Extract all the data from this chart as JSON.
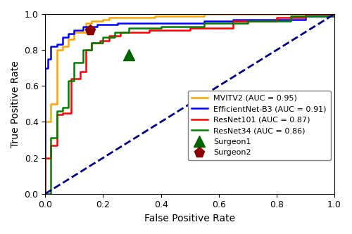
{
  "title": "",
  "xlabel": "False Positive Rate",
  "ylabel": "True Positive Rate",
  "xlim": [
    0.0,
    1.0
  ],
  "ylim": [
    0.0,
    1.0
  ],
  "mvitv2_color": "#FFA500",
  "efficientnet_color": "#0000FF",
  "resnet101_color": "#FF0000",
  "resnet34_color": "#008000",
  "diagonal_color": "#00008B",
  "surgeon1_color": "#006400",
  "surgeon2_color": "#8B0000",
  "surgeon1_point": [
    0.29,
    0.775
  ],
  "surgeon2_point": [
    0.155,
    0.91
  ],
  "mvitv2_fpr": [
    0.0,
    0.0,
    0.02,
    0.02,
    0.04,
    0.04,
    0.06,
    0.06,
    0.08,
    0.08,
    0.1,
    0.1,
    0.14,
    0.14,
    0.16,
    0.16,
    0.2,
    0.2,
    0.22,
    0.22,
    0.38,
    0.38,
    0.55,
    0.55,
    0.7,
    0.7,
    0.85,
    0.85,
    1.0
  ],
  "mvitv2_tpr": [
    0.0,
    0.4,
    0.4,
    0.5,
    0.5,
    0.8,
    0.8,
    0.82,
    0.82,
    0.86,
    0.86,
    0.9,
    0.9,
    0.95,
    0.95,
    0.96,
    0.96,
    0.97,
    0.97,
    0.98,
    0.98,
    0.99,
    0.99,
    1.0,
    1.0,
    1.0,
    1.0,
    1.0,
    1.0
  ],
  "efficientnet_fpr": [
    0.0,
    0.0,
    0.01,
    0.01,
    0.02,
    0.02,
    0.04,
    0.04,
    0.06,
    0.06,
    0.08,
    0.08,
    0.1,
    0.1,
    0.13,
    0.13,
    0.18,
    0.18,
    0.25,
    0.25,
    0.4,
    0.4,
    0.55,
    0.55,
    0.65,
    0.65,
    0.8,
    0.8,
    0.9,
    0.9,
    1.0
  ],
  "efficientnet_tpr": [
    0.0,
    0.7,
    0.7,
    0.75,
    0.75,
    0.82,
    0.82,
    0.83,
    0.83,
    0.87,
    0.87,
    0.89,
    0.89,
    0.91,
    0.91,
    0.93,
    0.93,
    0.94,
    0.94,
    0.95,
    0.95,
    0.95,
    0.95,
    0.96,
    0.96,
    0.97,
    0.97,
    0.97,
    0.97,
    0.99,
    0.99
  ],
  "resnet101_fpr": [
    0.0,
    0.0,
    0.02,
    0.02,
    0.04,
    0.04,
    0.06,
    0.06,
    0.09,
    0.09,
    0.12,
    0.12,
    0.14,
    0.14,
    0.16,
    0.16,
    0.19,
    0.19,
    0.22,
    0.22,
    0.26,
    0.26,
    0.36,
    0.36,
    0.5,
    0.5,
    0.65,
    0.65,
    0.8,
    0.8,
    0.9,
    0.9,
    1.0
  ],
  "resnet101_tpr": [
    0.0,
    0.2,
    0.2,
    0.27,
    0.27,
    0.44,
    0.44,
    0.45,
    0.45,
    0.64,
    0.64,
    0.68,
    0.68,
    0.8,
    0.8,
    0.84,
    0.84,
    0.85,
    0.85,
    0.88,
    0.88,
    0.9,
    0.9,
    0.91,
    0.91,
    0.92,
    0.92,
    0.96,
    0.96,
    0.98,
    0.98,
    1.0,
    1.0
  ],
  "resnet34_fpr": [
    0.0,
    0.0,
    0.02,
    0.02,
    0.04,
    0.04,
    0.06,
    0.06,
    0.08,
    0.08,
    0.1,
    0.1,
    0.13,
    0.13,
    0.16,
    0.16,
    0.2,
    0.2,
    0.24,
    0.24,
    0.29,
    0.29,
    0.4,
    0.4,
    0.55,
    0.55,
    0.7,
    0.7,
    0.85,
    0.85,
    1.0
  ],
  "resnet34_tpr": [
    0.0,
    0.0,
    0.0,
    0.31,
    0.31,
    0.46,
    0.46,
    0.48,
    0.48,
    0.63,
    0.63,
    0.73,
    0.73,
    0.8,
    0.8,
    0.84,
    0.84,
    0.87,
    0.87,
    0.9,
    0.9,
    0.92,
    0.92,
    0.93,
    0.93,
    0.95,
    0.95,
    0.96,
    0.96,
    0.99,
    0.99
  ],
  "legend_labels": [
    "MVITV2 (AUC = 0.95)",
    "EfficientNet-B3 (AUC = 0.91)",
    "ResNet101 (AUC = 0.87)",
    "ResNet34 (AUC = 0.86)",
    "Surgeon1",
    "Surgeon2"
  ],
  "figsize": [
    5.0,
    3.33
  ],
  "dpi": 100
}
